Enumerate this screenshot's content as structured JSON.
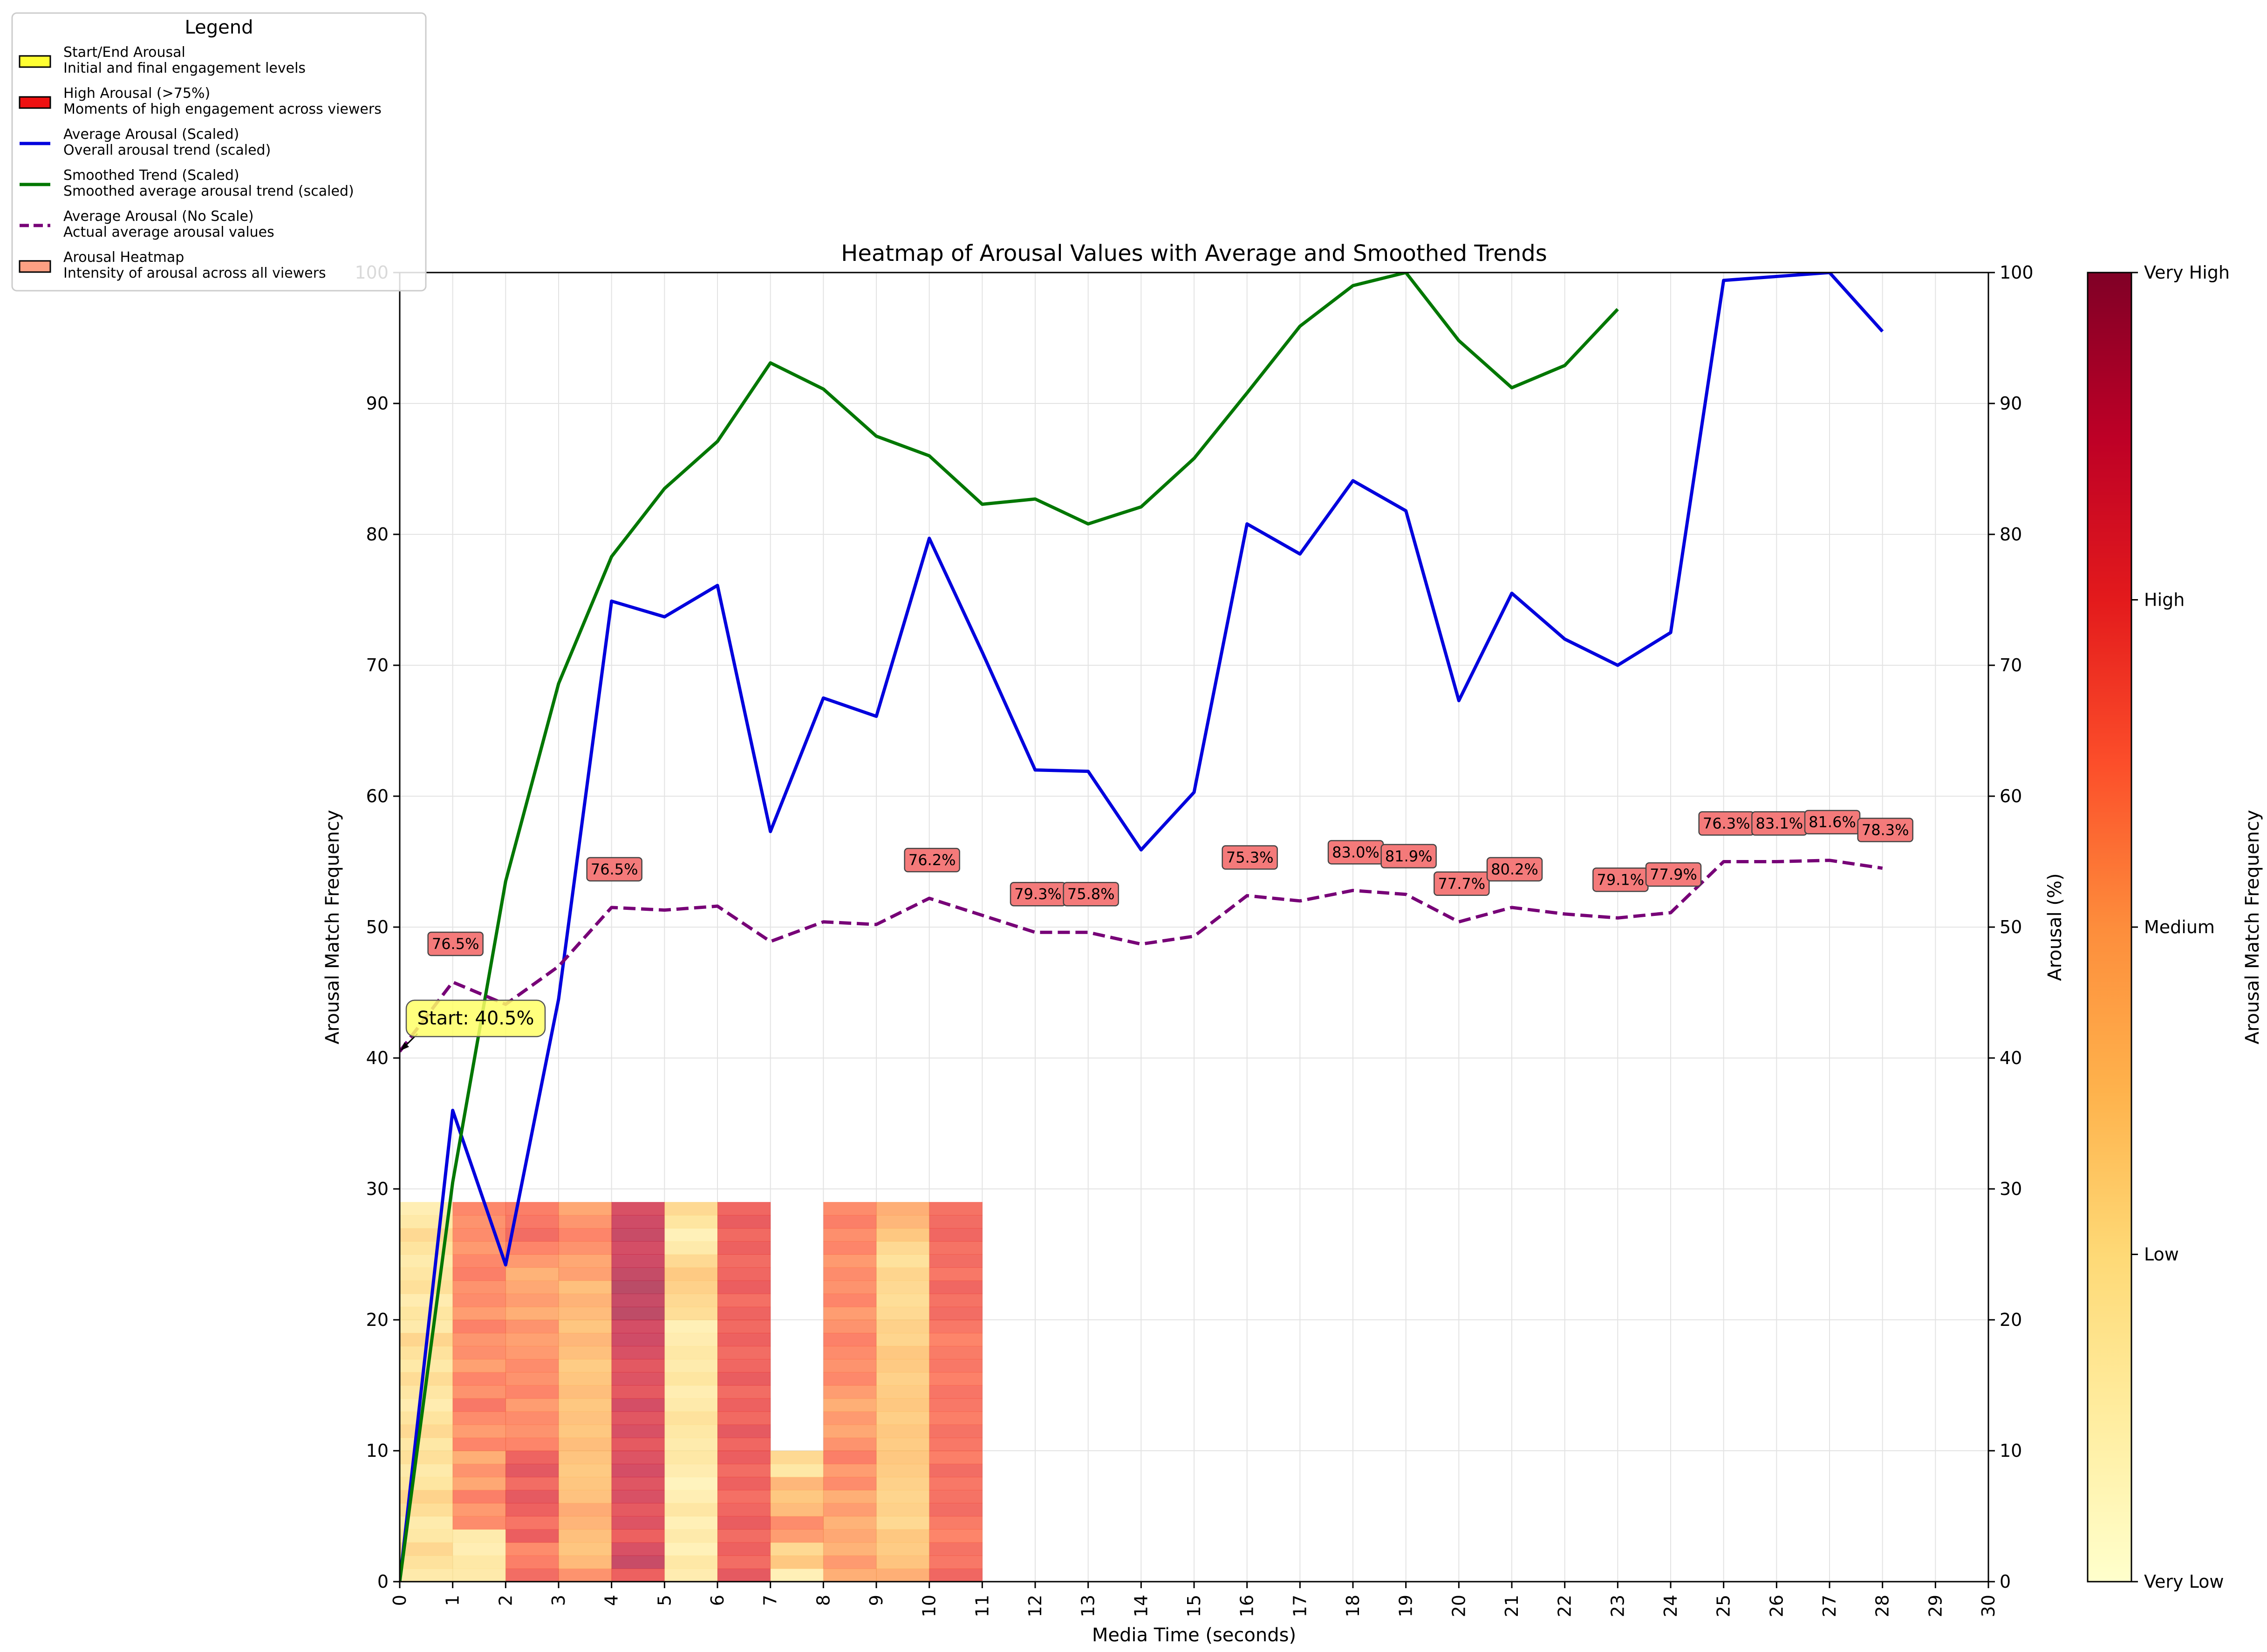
{
  "chart_data": {
    "type": "line",
    "title": "Heatmap of Arousal Values with Average and Smoothed Trends",
    "xlabel": "Media Time (seconds)",
    "ylabel": "Arousal Match Frequency",
    "ylabel_right": "Arousal (%)",
    "colorbar_label": "Arousal Match Frequency",
    "xlim": [
      0,
      30
    ],
    "ylim": [
      0,
      100
    ],
    "ylim_right": [
      0,
      100
    ],
    "grid": true,
    "x_ticks": [
      0,
      1,
      2,
      3,
      4,
      5,
      6,
      7,
      8,
      9,
      10,
      11,
      12,
      13,
      14,
      15,
      16,
      17,
      18,
      19,
      20,
      21,
      22,
      23,
      24,
      25,
      26,
      27,
      28,
      29,
      30
    ],
    "y_ticks": [
      0,
      10,
      20,
      30,
      40,
      50,
      60,
      70,
      80,
      90,
      100
    ],
    "colorbar_ticks": [
      "Very Low",
      "Low",
      "Medium",
      "High",
      "Very High"
    ],
    "legend": {
      "title": "Legend",
      "position": "top-left",
      "entries": [
        {
          "label": "Start/End Arousal",
          "description": "Initial and final engagement levels",
          "kind": "patch",
          "color": "#ffff33"
        },
        {
          "label": "High Arousal (>75%)",
          "description": "Moments of high engagement across viewers",
          "kind": "patch",
          "color": "#ee1111"
        },
        {
          "label": "Average Arousal (Scaled)",
          "description": "Overall arousal trend (scaled)",
          "kind": "line",
          "color": "#0000dd"
        },
        {
          "label": "Smoothed Trend (Scaled)",
          "description": "Smoothed average arousal trend (scaled)",
          "kind": "line",
          "color": "#007700"
        },
        {
          "label": "Average Arousal (No Scale)",
          "description": "Actual average arousal values",
          "kind": "dashed",
          "color": "#770077"
        },
        {
          "label": "Arousal Heatmap",
          "description": "Intensity of arousal across all viewers",
          "kind": "patch",
          "color": "#fca083"
        }
      ]
    },
    "series": [
      {
        "name": "Average Arousal (Scaled)",
        "color": "#0000dd",
        "style": "solid",
        "x": [
          0,
          1,
          2,
          3,
          4,
          5,
          6,
          7,
          8,
          9,
          10,
          11,
          12,
          13,
          14,
          15,
          16,
          17,
          18,
          19,
          20,
          21,
          22,
          23,
          24,
          25,
          26,
          27,
          28
        ],
        "y": [
          0,
          36,
          24.2,
          44.5,
          74.9,
          73.7,
          76.1,
          57.3,
          67.5,
          66.1,
          79.7,
          71,
          62,
          61.9,
          55.9,
          60.3,
          80.8,
          78.5,
          84.1,
          81.8,
          67.3,
          75.5,
          72,
          70,
          72.5,
          99.4,
          99.7,
          100,
          95.5
        ]
      },
      {
        "name": "Smoothed Trend (Scaled)",
        "color": "#007700",
        "style": "solid",
        "x": [
          0,
          1,
          2,
          3,
          4,
          5,
          6,
          7,
          8,
          9,
          10,
          11,
          12,
          13,
          14,
          15,
          16,
          17,
          18,
          19,
          20,
          21,
          22,
          23
        ],
        "y": [
          0,
          30.5,
          53.5,
          68.6,
          78.3,
          83.5,
          87.1,
          93.1,
          91.1,
          87.5,
          86,
          82.3,
          82.7,
          80.8,
          82.1,
          85.8,
          90.8,
          95.9,
          99,
          100,
          94.8,
          91.2,
          92.9,
          97.2
        ]
      },
      {
        "name": "Average Arousal (No Scale)",
        "color": "#770077",
        "style": "dashed",
        "x": [
          0,
          1,
          2,
          3,
          4,
          5,
          6,
          7,
          8,
          9,
          10,
          11,
          12,
          13,
          14,
          15,
          16,
          17,
          18,
          19,
          20,
          21,
          22,
          23,
          24,
          25,
          26,
          27,
          28
        ],
        "y": [
          40.5,
          45.8,
          44.1,
          47,
          51.5,
          51.3,
          51.6,
          48.9,
          50.4,
          50.2,
          52.2,
          50.9,
          49.6,
          49.6,
          48.7,
          49.3,
          52.4,
          52,
          52.8,
          52.5,
          50.4,
          51.5,
          51,
          50.7,
          51.1,
          55,
          55,
          55.1,
          54.5
        ]
      }
    ],
    "start_annotation": {
      "x": 0,
      "y": 40.5,
      "label": "Start: 40.5%"
    },
    "high_annotations": [
      {
        "x": 1,
        "y": 45.8,
        "label": "76.5%"
      },
      {
        "x": 4,
        "y": 51.5,
        "label": "76.5%"
      },
      {
        "x": 10,
        "y": 52.2,
        "label": "76.2%"
      },
      {
        "x": 12,
        "y": 49.6,
        "label": "79.3%"
      },
      {
        "x": 13,
        "y": 49.6,
        "label": "75.8%"
      },
      {
        "x": 16,
        "y": 52.4,
        "label": "75.3%"
      },
      {
        "x": 18,
        "y": 52.8,
        "label": "83.0%"
      },
      {
        "x": 19,
        "y": 52.5,
        "label": "81.9%"
      },
      {
        "x": 20,
        "y": 50.4,
        "label": "77.7%"
      },
      {
        "x": 21,
        "y": 51.5,
        "label": "80.2%"
      },
      {
        "x": 23,
        "y": 50.7,
        "label": "79.1%"
      },
      {
        "x": 24,
        "y": 51.1,
        "label": "77.9%"
      },
      {
        "x": 25,
        "y": 55.0,
        "label": "76.3%"
      },
      {
        "x": 26,
        "y": 55.0,
        "label": "83.1%"
      },
      {
        "x": 27,
        "y": 55.1,
        "label": "81.6%"
      },
      {
        "x": 28,
        "y": 54.5,
        "label": "78.3%"
      }
    ],
    "heatmap": {
      "colormap": "YlOrRd",
      "alpha": 0.7,
      "row_height": 1,
      "columns": [
        {
          "x": 0,
          "values": [
            0.2,
            0.26,
            0.31,
            0.22,
            0.19,
            0.28,
            0.33,
            0.24,
            0.2,
            0.27,
            0.22,
            0.3,
            0.25,
            0.18,
            0.23,
            0.29,
            0.21,
            0.26,
            0.32,
            0.2,
            0.24,
            0.18,
            0.27,
            0.23,
            0.19,
            0.25,
            0.3,
            0.21,
            0.16
          ]
        },
        {
          "x": 1,
          "values": [
            0.2,
            0.22,
            0.16,
            0.19,
            0.6,
            0.56,
            0.64,
            0.52,
            0.58,
            0.5,
            0.62,
            0.55,
            0.6,
            0.66,
            0.58,
            0.62,
            0.54,
            0.59,
            0.57,
            0.63,
            0.55,
            0.6,
            0.58,
            0.64,
            0.61,
            0.56,
            0.6,
            0.58,
            0.61
          ]
        },
        {
          "x": 2,
          "values": [
            0.7,
            0.64,
            0.6,
            0.75,
            0.67,
            0.74,
            0.78,
            0.7,
            0.79,
            0.73,
            0.62,
            0.58,
            0.6,
            0.55,
            0.62,
            0.58,
            0.6,
            0.56,
            0.54,
            0.58,
            0.5,
            0.55,
            0.52,
            0.48,
            0.56,
            0.62,
            0.7,
            0.66,
            0.64
          ]
        },
        {
          "x": 3,
          "values": [
            0.58,
            0.45,
            0.39,
            0.42,
            0.47,
            0.51,
            0.41,
            0.39,
            0.37,
            0.4,
            0.43,
            0.38,
            0.41,
            0.38,
            0.43,
            0.39,
            0.36,
            0.42,
            0.46,
            0.39,
            0.44,
            0.48,
            0.42,
            0.54,
            0.52,
            0.58,
            0.62,
            0.57,
            0.52
          ]
        },
        {
          "x": 4,
          "values": [
            0.74,
            0.9,
            0.84,
            0.74,
            0.82,
            0.78,
            0.84,
            0.81,
            0.86,
            0.82,
            0.78,
            0.84,
            0.8,
            0.86,
            0.78,
            0.82,
            0.79,
            0.84,
            0.88,
            0.86,
            0.93,
            0.9,
            0.94,
            0.91,
            0.88,
            0.86,
            0.9,
            0.88,
            0.84
          ]
        },
        {
          "x": 5,
          "values": [
            0.18,
            0.22,
            0.14,
            0.2,
            0.15,
            0.23,
            0.16,
            0.12,
            0.18,
            0.22,
            0.19,
            0.22,
            0.26,
            0.2,
            0.17,
            0.24,
            0.19,
            0.22,
            0.18,
            0.15,
            0.28,
            0.3,
            0.34,
            0.37,
            0.3,
            0.2,
            0.14,
            0.24,
            0.3
          ]
        },
        {
          "x": 6,
          "values": [
            0.78,
            0.7,
            0.74,
            0.7,
            0.76,
            0.72,
            0.69,
            0.74,
            0.7,
            0.75,
            0.72,
            0.78,
            0.71,
            0.74,
            0.7,
            0.76,
            0.72,
            0.7,
            0.74,
            0.71,
            0.73,
            0.69,
            0.75,
            0.72,
            0.7,
            0.74,
            0.71,
            0.76,
            0.72
          ]
        },
        {
          "x": 7,
          "values": [
            0.15,
            0.38,
            0.3,
            0.55,
            0.6,
            0.44,
            0.38,
            0.46,
            0.22,
            0.3
          ]
        },
        {
          "x": 8,
          "values": [
            0.5,
            0.56,
            0.48,
            0.52,
            0.48,
            0.55,
            0.5,
            0.6,
            0.55,
            0.64,
            0.58,
            0.52,
            0.56,
            0.5,
            0.55,
            0.61,
            0.58,
            0.6,
            0.63,
            0.58,
            0.55,
            0.62,
            0.58,
            0.6,
            0.56,
            0.62,
            0.59,
            0.64,
            0.6
          ]
        },
        {
          "x": 9,
          "values": [
            0.5,
            0.4,
            0.36,
            0.38,
            0.3,
            0.34,
            0.32,
            0.34,
            0.36,
            0.38,
            0.36,
            0.38,
            0.35,
            0.38,
            0.36,
            0.34,
            0.37,
            0.38,
            0.32,
            0.34,
            0.3,
            0.28,
            0.3,
            0.32,
            0.26,
            0.3,
            0.38,
            0.46,
            0.5
          ]
        },
        {
          "x": 10,
          "values": [
            0.72,
            0.66,
            0.68,
            0.62,
            0.65,
            0.7,
            0.68,
            0.66,
            0.7,
            0.64,
            0.66,
            0.68,
            0.64,
            0.66,
            0.67,
            0.63,
            0.66,
            0.65,
            0.62,
            0.66,
            0.7,
            0.68,
            0.72,
            0.66,
            0.7,
            0.68,
            0.72,
            0.7,
            0.68
          ]
        }
      ]
    }
  }
}
